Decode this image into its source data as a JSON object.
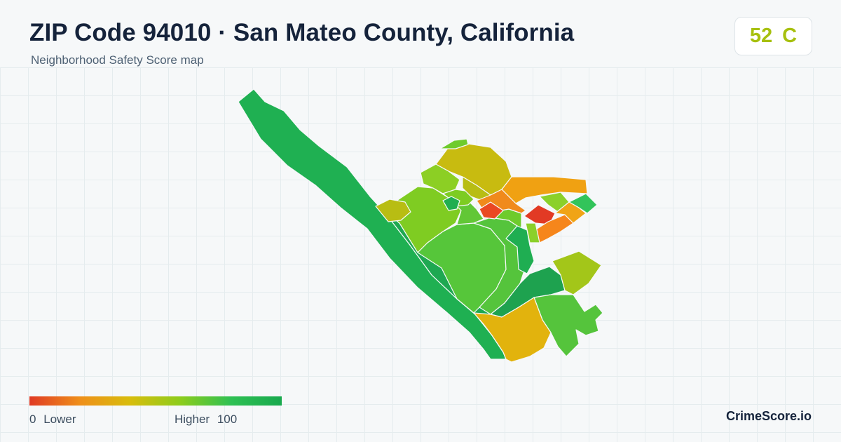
{
  "header": {
    "title": "ZIP Code 94010 · San Mateo County, California",
    "subtitle": "Neighborhood Safety Score map"
  },
  "score": {
    "value": "52",
    "grade": "C",
    "color": "#a7c00f"
  },
  "legend": {
    "low_value": "0",
    "low_label": "Lower",
    "high_label": "Higher",
    "high_value": "100",
    "gradient": [
      "#e03a24",
      "#ef8f1a",
      "#d8bd0c",
      "#8ccc1c",
      "#2ec053",
      "#19a94e"
    ]
  },
  "brand": "CrimeScore.io",
  "map": {
    "border_color": "#f6f8f9",
    "region_colors": {
      "coast_strip": "#1fb052",
      "coast_inner": "#1ea851",
      "west_lime": "#7fcc22",
      "west_olive": "#b8bd13",
      "central": "#56c63a",
      "mid_green": "#55c43c",
      "mid_left": "#62c736",
      "north_mustard": "#c8bb10",
      "north_light": "#8ccf24",
      "nw_lime": "#7dcc22",
      "n_green": "#6ecb2c",
      "n_dark": "#20ae50",
      "orange_top": "#f0a112",
      "orange_mid": "#f08a1c",
      "red_a": "#ea4823",
      "red_b": "#e23a24",
      "orange_c": "#f6861b",
      "lime_small": "#8bd02a",
      "teal": "#32c45a",
      "amber": "#f0a416",
      "east_green": "#1fae52",
      "east_dark": "#1ea24f",
      "east_olive": "#a3c619",
      "se_green": "#55c43c",
      "south_gold": "#e2b30d",
      "tiny_green": "#58c53c"
    }
  }
}
